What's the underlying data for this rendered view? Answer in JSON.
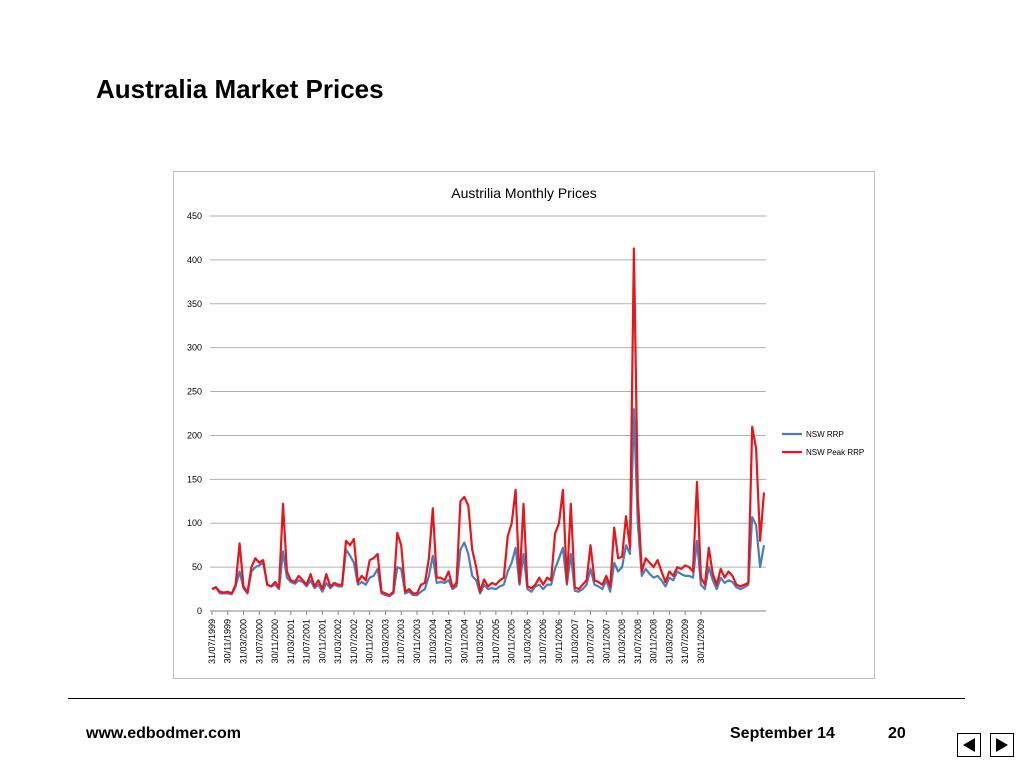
{
  "slide": {
    "title": "Australia Market Prices"
  },
  "footer": {
    "website": "www.edbodmer.com",
    "date": "September 14",
    "page_number": "20"
  },
  "nav": {
    "prev_icon": "triangle-left-icon",
    "next_icon": "triangle-right-icon"
  },
  "chart_data": {
    "type": "line",
    "title": "Austrilia Monthly Prices",
    "xlabel": "",
    "ylabel": "",
    "ylim": [
      0,
      450
    ],
    "yticks": [
      0,
      50,
      100,
      150,
      200,
      250,
      300,
      350,
      400,
      450
    ],
    "grid": true,
    "legend_position": "right",
    "x_tick_labels": [
      "31/07/1999",
      "30/11/1999",
      "31/03/2000",
      "31/07/2000",
      "30/11/2000",
      "31/03/2001",
      "31/07/2001",
      "30/11/2001",
      "31/03/2002",
      "31/07/2002",
      "30/11/2002",
      "31/03/2003",
      "31/07/2003",
      "30/11/2003",
      "31/03/2004",
      "31/07/2004",
      "30/11/2004",
      "31/03/2005",
      "31/07/2005",
      "30/11/2005",
      "31/03/2006",
      "31/07/2006",
      "30/11/2006",
      "31/03/2007",
      "31/07/2007",
      "30/11/2007",
      "31/03/2008",
      "31/07/2008",
      "30/11/2008",
      "31/03/2009",
      "31/07/2009",
      "30/11/2009"
    ],
    "x_tick_step": 4,
    "series": [
      {
        "name": "NSW RRP",
        "color": "#4a7ebb",
        "values": [
          25,
          27,
          20,
          20,
          20,
          19,
          28,
          45,
          26,
          20,
          45,
          50,
          52,
          55,
          30,
          28,
          30,
          25,
          68,
          38,
          33,
          31,
          35,
          33,
          28,
          35,
          26,
          30,
          22,
          32,
          26,
          30,
          28,
          28,
          70,
          63,
          55,
          30,
          33,
          30,
          38,
          40,
          48,
          20,
          18,
          17,
          20,
          50,
          48,
          20,
          22,
          18,
          18,
          22,
          25,
          40,
          63,
          32,
          33,
          32,
          35,
          25,
          28,
          70,
          78,
          65,
          40,
          35,
          20,
          30,
          25,
          26,
          25,
          28,
          30,
          45,
          55,
          72,
          30,
          65,
          25,
          22,
          28,
          30,
          25,
          30,
          30,
          48,
          60,
          72,
          30,
          65,
          23,
          22,
          25,
          30,
          48,
          30,
          28,
          25,
          35,
          22,
          55,
          45,
          50,
          75,
          65,
          230,
          100,
          40,
          48,
          42,
          38,
          40,
          35,
          28,
          38,
          35,
          45,
          42,
          40,
          40,
          38,
          80,
          30,
          25,
          50,
          35,
          25,
          38,
          32,
          35,
          33,
          27,
          25,
          27,
          30,
          107,
          98,
          50,
          75
        ],
        "values_note": "monthly"
      },
      {
        "name": "NSW Peak RRP",
        "color": "#e8151b",
        "values": [
          25,
          27,
          22,
          21,
          22,
          20,
          30,
          77,
          28,
          21,
          50,
          60,
          55,
          58,
          30,
          28,
          33,
          27,
          122,
          45,
          35,
          33,
          40,
          35,
          30,
          42,
          28,
          35,
          25,
          42,
          28,
          32,
          30,
          30,
          80,
          75,
          82,
          33,
          40,
          35,
          58,
          60,
          65,
          22,
          20,
          18,
          22,
          89,
          75,
          22,
          25,
          20,
          20,
          30,
          32,
          60,
          117,
          38,
          38,
          35,
          45,
          27,
          32,
          125,
          130,
          120,
          70,
          50,
          22,
          36,
          28,
          32,
          30,
          35,
          38,
          85,
          100,
          138,
          32,
          122,
          28,
          26,
          30,
          38,
          30,
          38,
          35,
          88,
          100,
          138,
          32,
          122,
          27,
          25,
          30,
          35,
          75,
          35,
          33,
          30,
          40,
          28,
          95,
          60,
          62,
          108,
          72,
          413,
          130,
          45,
          60,
          55,
          50,
          58,
          45,
          33,
          45,
          40,
          50,
          48,
          52,
          50,
          45,
          147,
          38,
          30,
          72,
          42,
          30,
          48,
          38,
          45,
          40,
          30,
          28,
          30,
          32,
          210,
          185,
          80,
          135
        ]
      }
    ]
  }
}
